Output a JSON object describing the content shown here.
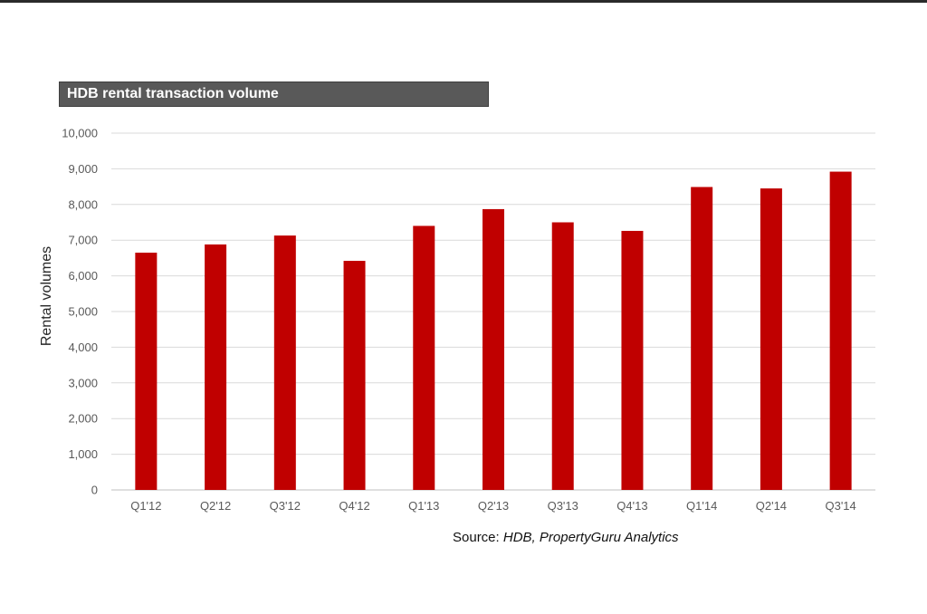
{
  "chart_data": {
    "type": "bar",
    "title": "HDB rental transaction volume",
    "xlabel": "",
    "ylabel": "Rental volumes",
    "categories": [
      "Q1'12",
      "Q2'12",
      "Q3'12",
      "Q4'12",
      "Q1'13",
      "Q2'13",
      "Q3'13",
      "Q4'13",
      "Q1'14",
      "Q2'14",
      "Q3'14"
    ],
    "values": [
      6650,
      6880,
      7130,
      6420,
      7400,
      7870,
      7500,
      7260,
      8490,
      8450,
      8920
    ],
    "ylim": [
      0,
      10000
    ],
    "yticks": [
      "0",
      "1,000",
      "2,000",
      "3,000",
      "4,000",
      "5,000",
      "6,000",
      "7,000",
      "8,000",
      "9,000",
      "10,000"
    ],
    "grid": true,
    "legend": "none",
    "bar_color": "#c00000"
  },
  "source": {
    "prefix": "Source: ",
    "text": "HDB, PropertyGuru Analytics"
  }
}
